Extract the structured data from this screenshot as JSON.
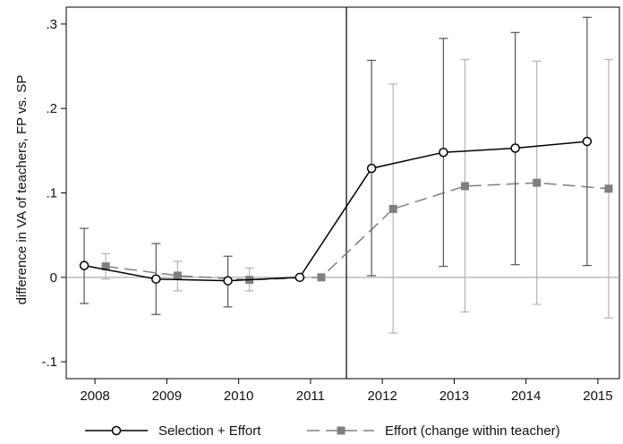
{
  "chart_data": {
    "type": "line",
    "title": "",
    "xlabel": "",
    "ylabel": "difference in VA of teachers, FP vs. SP",
    "x_ticks": [
      "2008",
      "2009",
      "2010",
      "2011",
      "2012",
      "2013",
      "2014",
      "2015"
    ],
    "y_ticks": [
      -0.1,
      0,
      0.1,
      0.2,
      0.3
    ],
    "y_tick_labels": [
      "-.1",
      "0",
      ".1",
      ".2",
      ".3"
    ],
    "xlim": [
      2007.6,
      2015.3
    ],
    "ylim": [
      -0.12,
      0.32
    ],
    "reference_vertical_line": 2011.5,
    "reference_horizontal_line": 0,
    "grid": false,
    "legend_position": "bottom",
    "series": [
      {
        "name": "Selection + Effort",
        "color": "#000000",
        "style": "solid",
        "marker": "hollow-circle",
        "x": [
          2007.85,
          2008.85,
          2009.85,
          2010.85,
          2011.85,
          2012.85,
          2013.85,
          2014.85
        ],
        "y": [
          0.014,
          -0.002,
          -0.004,
          0.0,
          0.129,
          0.148,
          0.153,
          0.161
        ],
        "ci_low": [
          -0.031,
          -0.044,
          -0.035,
          0.0,
          0.002,
          0.013,
          0.015,
          0.014
        ],
        "ci_high": [
          0.058,
          0.04,
          0.025,
          0.0,
          0.257,
          0.283,
          0.29,
          0.308
        ]
      },
      {
        "name": "Effort (change within teacher)",
        "color": "#7f7f7f",
        "style": "dashed",
        "marker": "filled-square",
        "x": [
          2008.15,
          2009.15,
          2010.15,
          2011.15,
          2012.15,
          2013.15,
          2014.15,
          2015.15
        ],
        "y": [
          0.013,
          0.002,
          -0.003,
          0.0,
          0.081,
          0.108,
          0.112,
          0.105
        ],
        "ci_low": [
          -0.002,
          -0.016,
          -0.016,
          0.0,
          -0.066,
          -0.041,
          -0.032,
          -0.048
        ],
        "ci_high": [
          0.028,
          0.019,
          0.011,
          0.0,
          0.229,
          0.258,
          0.256,
          0.258
        ]
      }
    ]
  }
}
